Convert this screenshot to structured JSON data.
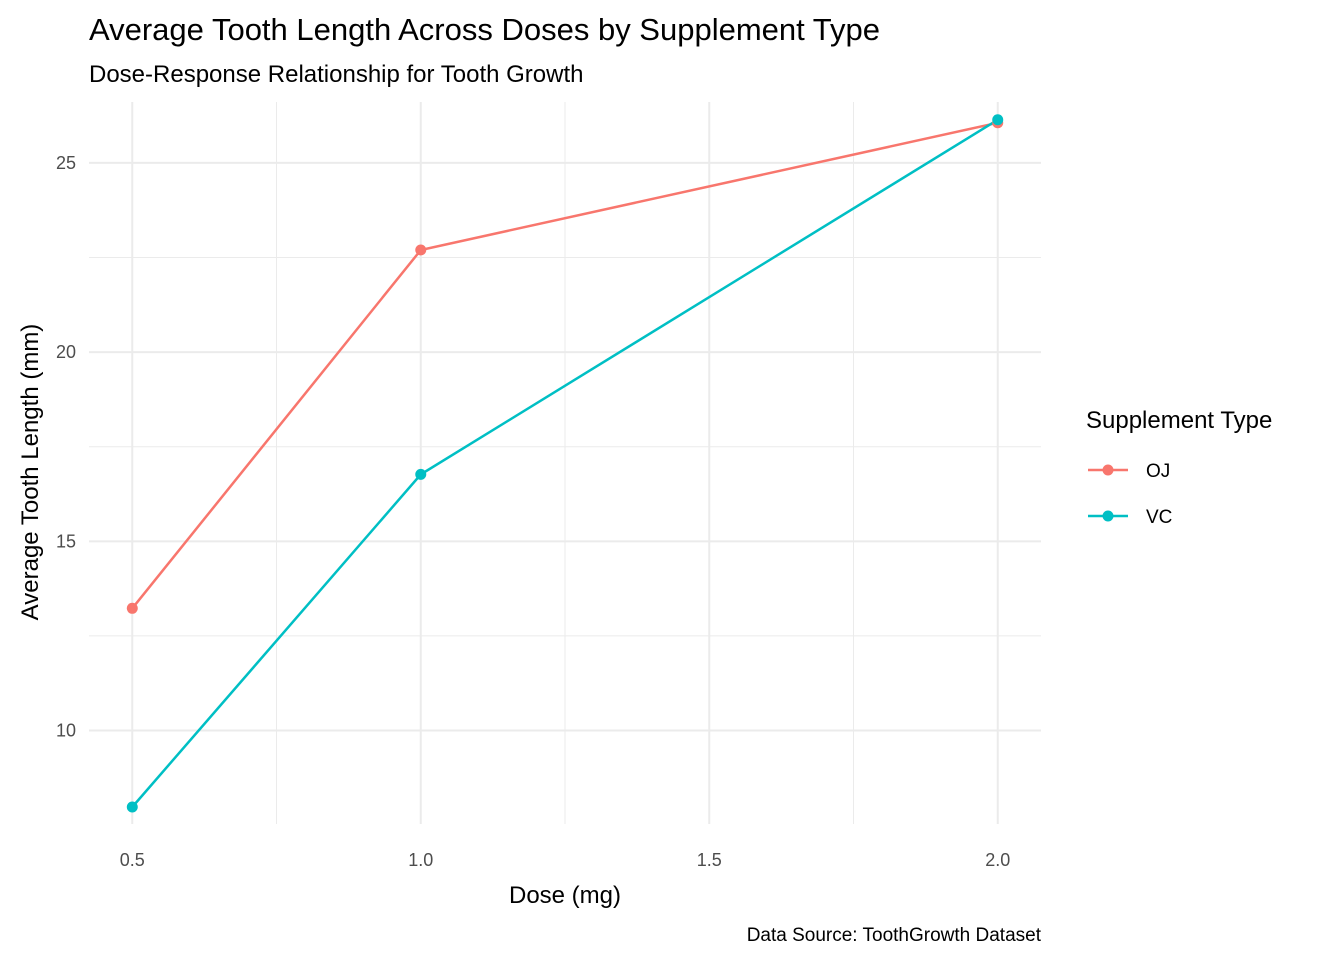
{
  "chart_data": {
    "type": "line",
    "title": "Average Tooth Length Across Doses by Supplement Type",
    "subtitle": "Dose-Response Relationship for Tooth Growth",
    "xlabel": "Dose (mg)",
    "ylabel": "Average Tooth Length (mm)",
    "caption": "Data Source: ToothGrowth Dataset",
    "x_ticks": [
      0.5,
      1.0,
      1.5,
      2.0
    ],
    "x_tick_labels": [
      "0.5",
      "1.0",
      "1.5",
      "2.0"
    ],
    "y_ticks": [
      10,
      15,
      20,
      25
    ],
    "y_tick_labels": [
      "10",
      "15",
      "20",
      "25"
    ],
    "xlim": [
      0.425,
      2.075
    ],
    "ylim": [
      7.53,
      26.61
    ],
    "grid": true,
    "legend": {
      "title": "Supplement Type",
      "position": "right"
    },
    "series": [
      {
        "name": "OJ",
        "color": "#F8766D",
        "x": [
          0.5,
          1.0,
          2.0
        ],
        "values": [
          13.23,
          22.7,
          26.06
        ]
      },
      {
        "name": "VC",
        "color": "#00BFC4",
        "x": [
          0.5,
          1.0,
          2.0
        ],
        "values": [
          7.98,
          16.77,
          26.14
        ]
      }
    ]
  }
}
